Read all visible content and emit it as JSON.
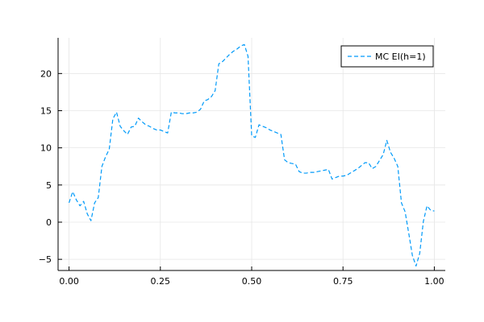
{
  "chart_data": {
    "type": "line",
    "title": "",
    "xlabel": "",
    "ylabel": "",
    "xlim": [
      -0.03,
      1.03
    ],
    "ylim": [
      -6.5,
      24.8
    ],
    "grid": true,
    "legend_position": "top-right",
    "x_ticks": [
      {
        "value": 0.0,
        "label": "0.00"
      },
      {
        "value": 0.25,
        "label": "0.25"
      },
      {
        "value": 0.5,
        "label": "0.50"
      },
      {
        "value": 0.75,
        "label": "0.75"
      },
      {
        "value": 1.0,
        "label": "1.00"
      }
    ],
    "y_ticks": [
      {
        "value": -5,
        "label": "−5"
      },
      {
        "value": 0,
        "label": "0"
      },
      {
        "value": 5,
        "label": "5"
      },
      {
        "value": 10,
        "label": "10"
      },
      {
        "value": 15,
        "label": "15"
      },
      {
        "value": 20,
        "label": "20"
      }
    ],
    "series": [
      {
        "name": "MC EI(h=1)",
        "color": "#009af9",
        "line_style": "dashed",
        "x": [
          0.0,
          0.01,
          0.02,
          0.03,
          0.04,
          0.05,
          0.06,
          0.07,
          0.08,
          0.09,
          0.1,
          0.11,
          0.12,
          0.13,
          0.14,
          0.15,
          0.16,
          0.17,
          0.18,
          0.19,
          0.2,
          0.21,
          0.22,
          0.23,
          0.24,
          0.25,
          0.26,
          0.27,
          0.28,
          0.29,
          0.3,
          0.31,
          0.32,
          0.33,
          0.34,
          0.35,
          0.36,
          0.37,
          0.38,
          0.39,
          0.4,
          0.41,
          0.42,
          0.43,
          0.44,
          0.45,
          0.46,
          0.47,
          0.48,
          0.49,
          0.5,
          0.51,
          0.52,
          0.53,
          0.54,
          0.55,
          0.56,
          0.57,
          0.58,
          0.59,
          0.6,
          0.61,
          0.62,
          0.63,
          0.64,
          0.65,
          0.66,
          0.67,
          0.68,
          0.69,
          0.7,
          0.71,
          0.72,
          0.73,
          0.74,
          0.75,
          0.76,
          0.77,
          0.78,
          0.79,
          0.8,
          0.81,
          0.82,
          0.83,
          0.84,
          0.85,
          0.86,
          0.87,
          0.88,
          0.89,
          0.9,
          0.91,
          0.92,
          0.93,
          0.94,
          0.95,
          0.96,
          0.97,
          0.98,
          0.99,
          1.0
        ],
        "y": [
          2.6,
          4.1,
          3.0,
          2.2,
          2.8,
          1.1,
          0.2,
          2.6,
          3.3,
          7.5,
          8.8,
          9.8,
          13.9,
          14.8,
          12.9,
          12.3,
          11.8,
          12.8,
          12.9,
          14.0,
          13.5,
          13.1,
          12.9,
          12.6,
          12.4,
          12.4,
          12.2,
          12.0,
          14.8,
          14.7,
          14.7,
          14.6,
          14.6,
          14.7,
          14.7,
          14.8,
          15.2,
          16.3,
          16.5,
          16.9,
          17.7,
          21.3,
          21.6,
          22.1,
          22.6,
          23.0,
          23.3,
          23.7,
          23.9,
          22.3,
          11.6,
          11.4,
          13.1,
          12.9,
          12.7,
          12.4,
          12.2,
          12.0,
          11.8,
          8.4,
          8.0,
          7.9,
          7.8,
          6.8,
          6.6,
          6.6,
          6.7,
          6.7,
          6.8,
          6.9,
          7.0,
          7.1,
          5.8,
          6.0,
          6.2,
          6.2,
          6.3,
          6.6,
          6.9,
          7.2,
          7.6,
          8.0,
          8.0,
          7.2,
          7.5,
          8.3,
          9.1,
          11.0,
          9.4,
          8.6,
          7.5,
          2.6,
          1.4,
          -1.5,
          -4.5,
          -5.9,
          -4.2,
          0.1,
          2.2,
          1.6,
          1.5
        ]
      }
    ]
  }
}
